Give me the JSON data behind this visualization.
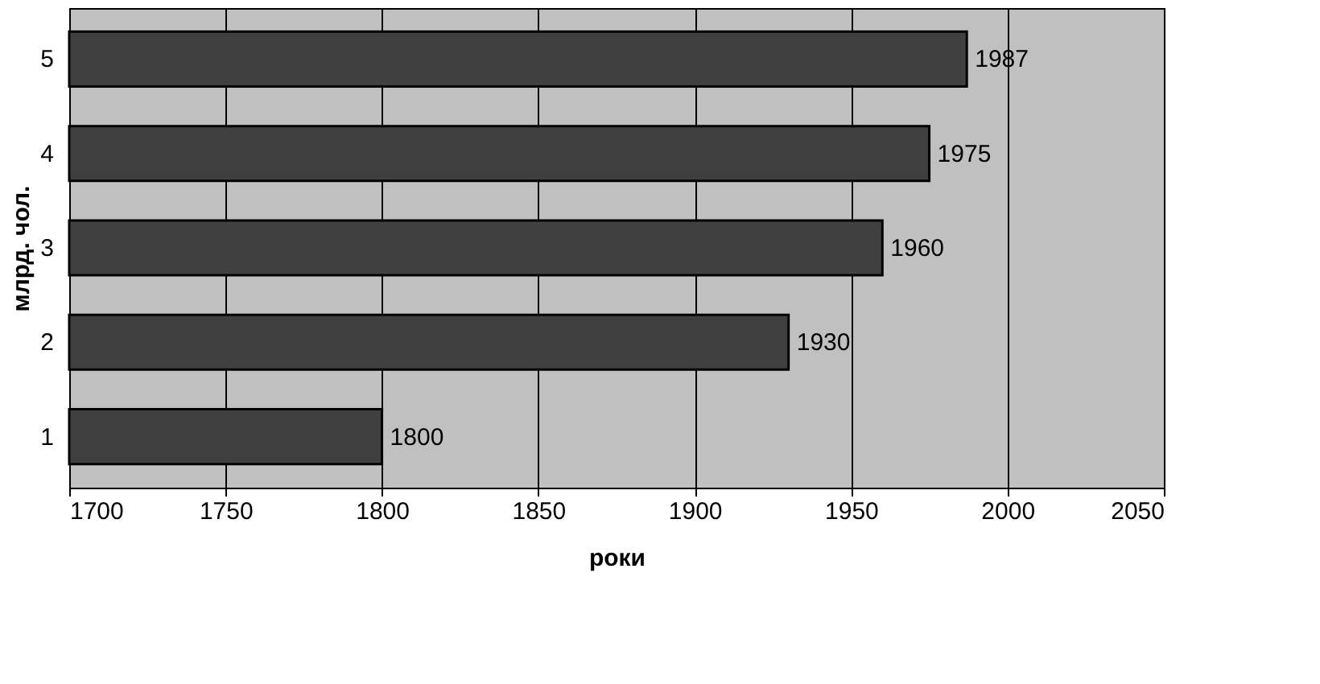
{
  "chart_data": {
    "type": "bar",
    "orientation": "horizontal",
    "xlabel": "роки",
    "ylabel": "млрд. чол.",
    "categories": [
      "5",
      "4",
      "3",
      "2",
      "1"
    ],
    "values": [
      1987,
      1975,
      1960,
      1930,
      1800
    ],
    "color": "#404040",
    "xlim": [
      1700,
      2050
    ],
    "xticks": [
      1700,
      1750,
      1800,
      1850,
      1900,
      1950,
      2000,
      2050
    ],
    "grid": "x",
    "data_labels": true
  }
}
